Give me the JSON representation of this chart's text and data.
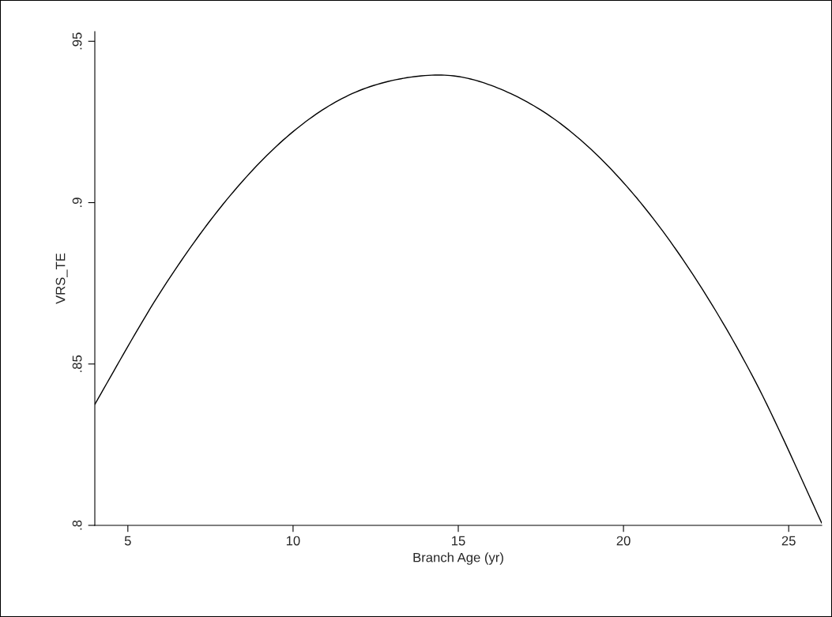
{
  "chart_data": {
    "type": "line",
    "xlabel": "Branch Age (yr)",
    "ylabel": "VRS_TE",
    "x": [
      4,
      6,
      8,
      10,
      12,
      14.2,
      16,
      18,
      20,
      22,
      24,
      26
    ],
    "series": [
      {
        "color": "#000000",
        "values": [
          0.8375,
          0.8725,
          0.901,
          0.922,
          0.9347,
          0.9395,
          0.9363,
          0.9252,
          0.9062,
          0.8793,
          0.8444,
          0.8007
        ]
      }
    ],
    "xlim": [
      4,
      26
    ],
    "ylim": [
      0.8,
      0.953
    ],
    "xticks": [
      5,
      10,
      15,
      20,
      25
    ],
    "yticks": [
      {
        "value": 0.8,
        "label": ".8"
      },
      {
        "value": 0.85,
        "label": ".85"
      },
      {
        "value": 0.9,
        "label": ".9"
      },
      {
        "value": 0.95,
        "label": ".95"
      }
    ],
    "grid": false,
    "legend": false,
    "marker": "none",
    "line_style": "solid"
  }
}
